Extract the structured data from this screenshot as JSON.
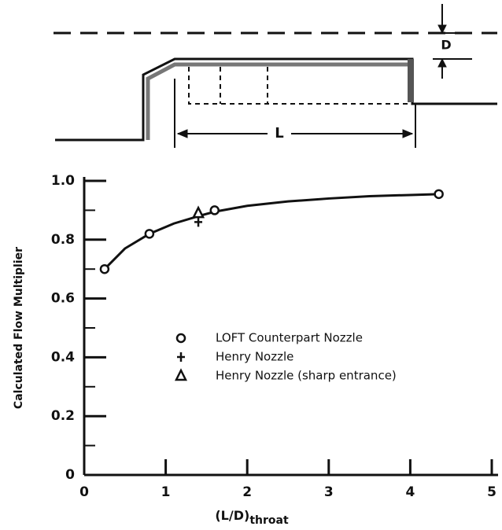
{
  "chart_data": {
    "type": "scatter",
    "xlabel": "(L/D)",
    "xlabel_sub": "throat",
    "ylabel": "Calculated Flow Multiplier",
    "xlim": [
      0,
      5
    ],
    "ylim": [
      0,
      1.0
    ],
    "xticks": [
      0,
      1,
      2,
      3,
      4,
      5
    ],
    "yticks": [
      0,
      0.2,
      0.4,
      0.6,
      0.8,
      {
        "value": 1.0,
        "label": "1.0"
      }
    ],
    "yminor": [
      0.1,
      0.3,
      0.5,
      0.7,
      0.9
    ],
    "series": [
      {
        "name": "LOFT Counterpart Nozzle",
        "marker": "circle",
        "color": "#111",
        "x": [
          0.25,
          0.8,
          1.6,
          4.35
        ],
        "values": [
          0.7,
          0.82,
          0.9,
          0.955
        ]
      },
      {
        "name": "Henry Nozzle",
        "marker": "plus",
        "color": "#111",
        "x": [
          1.4
        ],
        "values": [
          0.86
        ]
      },
      {
        "name": "Henry Nozzle (sharp entrance)",
        "marker": "triangle",
        "color": "#111",
        "x": [
          1.4
        ],
        "values": [
          0.89
        ]
      }
    ],
    "fit": {
      "color": "#111",
      "x": [
        0.25,
        0.5,
        0.8,
        1.1,
        1.4,
        1.6,
        2.0,
        2.5,
        3.0,
        3.5,
        4.0,
        4.35
      ],
      "values": [
        0.7,
        0.77,
        0.82,
        0.855,
        0.88,
        0.895,
        0.915,
        0.93,
        0.94,
        0.948,
        0.952,
        0.955
      ]
    }
  },
  "diagram": {
    "diameter_label": "D",
    "length_label": "L"
  }
}
